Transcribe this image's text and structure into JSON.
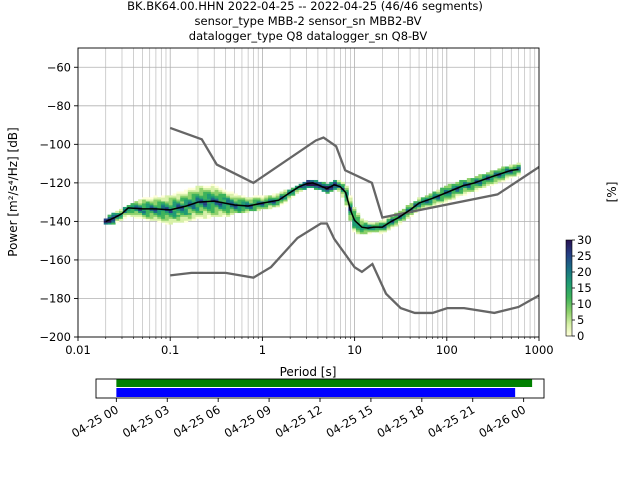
{
  "title_lines": [
    "BK.BK64.00.HHN   2022-04-25 -- 2022-04-25  (46/46 segments)",
    "sensor_type MBB-2 sensor_sn MBB2-BV",
    "datalogger_type Q8 datalogger_sn Q8-BV"
  ],
  "colors": {
    "noise_model": "#666666",
    "mean_curve": "#000000",
    "coverage_green": "#008000",
    "coverage_blue": "#0000ff",
    "grid": "#b0b0b0"
  },
  "chart_data": [
    {
      "type": "heatmap",
      "xlabel": "Period [s]",
      "ylabel": "Power [m²/s⁴/Hz] [dB]",
      "x_scale": "log",
      "xlim": [
        0.01,
        1000
      ],
      "ylim": [
        -200,
        -50
      ],
      "x_ticks": [
        {
          "v": 0.01,
          "label": "0.01"
        },
        {
          "v": 0.1,
          "label": "0.1"
        },
        {
          "v": 1,
          "label": "1"
        },
        {
          "v": 10,
          "label": "10"
        },
        {
          "v": 100,
          "label": "100"
        },
        {
          "v": 1000,
          "label": "1000"
        }
      ],
      "y_ticks": [
        -200,
        -180,
        -160,
        -140,
        -120,
        -100,
        -80,
        -60
      ],
      "grid": true,
      "colorbar": {
        "label": "[%]",
        "min": 0,
        "max": 30,
        "ticks": [
          0,
          5,
          10,
          15,
          20,
          25,
          30
        ]
      },
      "high_noise_model": {
        "x": [
          0.1,
          0.22,
          0.32,
          0.8,
          3.8,
          4.6,
          6.3,
          7.9,
          15.4,
          20.0,
          354.8,
          10000
        ],
        "y": [
          -91.5,
          -97.4,
          -110.5,
          -120.0,
          -98.0,
          -96.5,
          -101.0,
          -113.5,
          -120.0,
          -138.0,
          -126.0,
          -80.1
        ]
      },
      "low_noise_model": {
        "x": [
          0.1,
          0.17,
          0.4,
          0.8,
          1.24,
          2.4,
          4.3,
          5.0,
          6.0,
          10.0,
          12.0,
          15.6,
          21.9,
          31.6,
          45.0,
          70.0,
          101.0,
          154.0,
          328.0,
          600.0,
          10000
        ],
        "y": [
          -168.0,
          -166.7,
          -166.7,
          -169.2,
          -163.7,
          -148.6,
          -141.1,
          -141.1,
          -149.0,
          -163.8,
          -166.2,
          -162.1,
          -177.5,
          -185.0,
          -187.5,
          -187.5,
          -185.0,
          -185.0,
          -187.5,
          -184.4,
          -151.5
        ]
      },
      "mean_curve": {
        "x": [
          0.02,
          0.025,
          0.03,
          0.035,
          0.05,
          0.07,
          0.1,
          0.15,
          0.2,
          0.3,
          0.5,
          0.7,
          1.0,
          1.5,
          2.0,
          2.5,
          3.0,
          3.5,
          4.0,
          5.0,
          6.0,
          7.0,
          8.0,
          9.0,
          10.0,
          12.0,
          14.0,
          16.0,
          20.0,
          25.0,
          30.0,
          40.0,
          50.0,
          70.0,
          100.0,
          150.0,
          200.0,
          300.0,
          400.0,
          500.0,
          600.0
        ],
        "y": [
          -140,
          -138,
          -136,
          -133,
          -133.5,
          -133.5,
          -134,
          -132,
          -130,
          -129.5,
          -131.5,
          -132,
          -130.5,
          -129,
          -125,
          -122,
          -120.5,
          -120,
          -121,
          -123,
          -121,
          -122,
          -125,
          -134,
          -139.5,
          -143,
          -143.5,
          -143,
          -143,
          -140,
          -138,
          -134,
          -130.5,
          -128,
          -125,
          -121.5,
          -120,
          -117,
          -115,
          -113.5,
          -113
        ]
      },
      "density_upper": {
        "x": [
          0.02,
          0.05,
          0.1,
          0.2,
          0.3,
          0.5,
          1.0,
          2.0,
          3.0,
          4.0,
          5.0,
          6.0,
          7.0,
          8.0,
          9.0,
          10.0,
          12.0,
          16.0,
          20.0,
          30.0,
          50.0,
          100.0,
          200.0,
          400.0,
          600.0
        ],
        "y": [
          -137,
          -128,
          -125,
          -121,
          -120,
          -122,
          -125,
          -123,
          -119,
          -118,
          -121,
          -119,
          -119,
          -120,
          -123,
          -130,
          -137,
          -140,
          -139,
          -135,
          -128,
          -121,
          -117,
          -112,
          -110
        ]
      },
      "density_lower": {
        "x": [
          0.02,
          0.05,
          0.1,
          0.2,
          0.3,
          0.5,
          1.0,
          2.0,
          3.0,
          4.0,
          5.0,
          6.0,
          7.0,
          8.0,
          9.0,
          10.0,
          12.0,
          16.0,
          20.0,
          30.0,
          50.0,
          100.0,
          200.0,
          400.0,
          600.0
        ],
        "y": [
          -141,
          -141,
          -143,
          -142,
          -140,
          -136,
          -134,
          -131,
          -124,
          -123,
          -126,
          -124,
          -127,
          -132,
          -140,
          -146,
          -147,
          -146,
          -147,
          -144,
          -137,
          -133,
          -128,
          -122,
          -118
        ]
      }
    },
    {
      "type": "bar",
      "title": "",
      "x_ticks": [
        "04-25 00",
        "04-25 03",
        "04-25 06",
        "04-25 09",
        "04-25 12",
        "04-25 15",
        "04-25 18",
        "04-25 21",
        "04-26 00"
      ],
      "xlim_hours": [
        -1.2,
        25.2
      ],
      "series": [
        {
          "color": "#008000",
          "start_hour": 0.0,
          "end_hour": 24.5
        },
        {
          "color": "#0000ff",
          "start_hour": 0.0,
          "end_hour": 23.5
        }
      ]
    }
  ]
}
